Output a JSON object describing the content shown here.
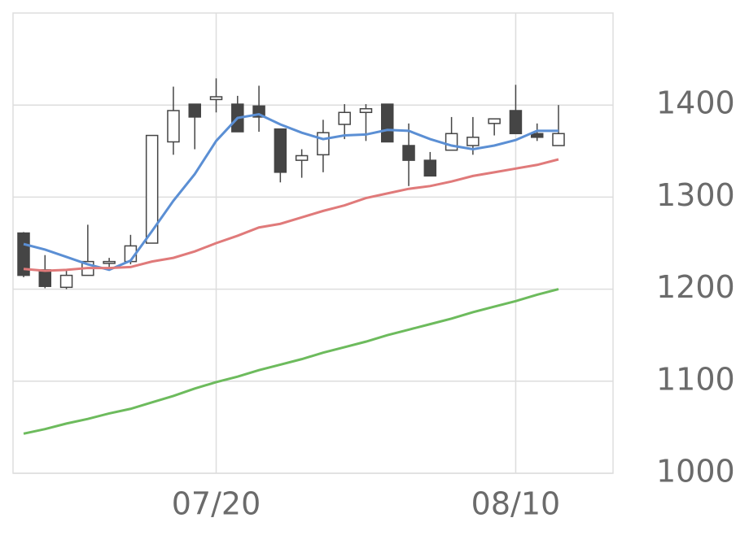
{
  "chart_data": {
    "type": "candlestick",
    "categories": [
      null,
      null,
      null,
      null,
      null,
      null,
      null,
      null,
      null,
      "07/20",
      null,
      null,
      null,
      null,
      null,
      null,
      null,
      null,
      null,
      null,
      null,
      null,
      null,
      "08/10",
      null,
      null
    ],
    "open": [
      1261,
      1221,
      1202,
      1215,
      1228,
      1230,
      1250,
      1360,
      1401,
      1406,
      1401,
      1399,
      1374,
      1340,
      1346,
      1379,
      1392,
      1401,
      1356,
      1340,
      1351,
      1356,
      1380,
      1394,
      1369,
      1356
    ],
    "high": [
      1262,
      1237,
      1222,
      1270,
      1234,
      1259,
      1367,
      1420,
      1401,
      1429,
      1410,
      1421,
      1374,
      1352,
      1384,
      1401,
      1401,
      1401,
      1380,
      1349,
      1387,
      1387,
      1385,
      1422,
      1380,
      1400
    ],
    "low": [
      1213,
      1201,
      1200,
      1215,
      1223,
      1227,
      1250,
      1346,
      1352,
      1392,
      1371,
      1371,
      1316,
      1321,
      1327,
      1363,
      1361,
      1360,
      1312,
      1323,
      1351,
      1346,
      1367,
      1369,
      1361,
      1356
    ],
    "close": [
      1215,
      1203,
      1215,
      1230,
      1230,
      1247,
      1367,
      1394,
      1387,
      1409,
      1371,
      1387,
      1327,
      1345,
      1370,
      1392,
      1396,
      1360,
      1340,
      1323,
      1369,
      1365,
      1385,
      1369,
      1365,
      1369
    ],
    "up_color": "#ffffff",
    "down_color": "#454545",
    "series": [
      {
        "color": "#5b8fd4",
        "values": [
          1249,
          1243,
          1235,
          1227,
          1221,
          1231,
          1263,
          1296,
          1325,
          1361,
          1386,
          1390,
          1379,
          1370,
          1363,
          1367,
          1368,
          1373,
          1372,
          1363,
          1356,
          1352,
          1356,
          1362,
          1372,
          1372
        ]
      },
      {
        "color": "#e07a7a",
        "values": [
          1222,
          1220,
          1221,
          1223,
          1223,
          1224,
          1230,
          1234,
          1241,
          1250,
          1258,
          1267,
          1271,
          1278,
          1285,
          1291,
          1299,
          1304,
          1309,
          1312,
          1317,
          1323,
          1327,
          1331,
          1335,
          1341
        ]
      },
      {
        "color": "#6dbb5d",
        "values": [
          1043,
          1048,
          1054,
          1059,
          1065,
          1070,
          1077,
          1084,
          1092,
          1099,
          1105,
          1112,
          1118,
          1124,
          1131,
          1137,
          1143,
          1150,
          1156,
          1162,
          1168,
          1175,
          1181,
          1187,
          1194,
          1200
        ]
      }
    ],
    "ylim": [
      1000,
      1500
    ],
    "yticks": [
      1000,
      1100,
      1200,
      1300,
      1400
    ],
    "grid": true
  }
}
